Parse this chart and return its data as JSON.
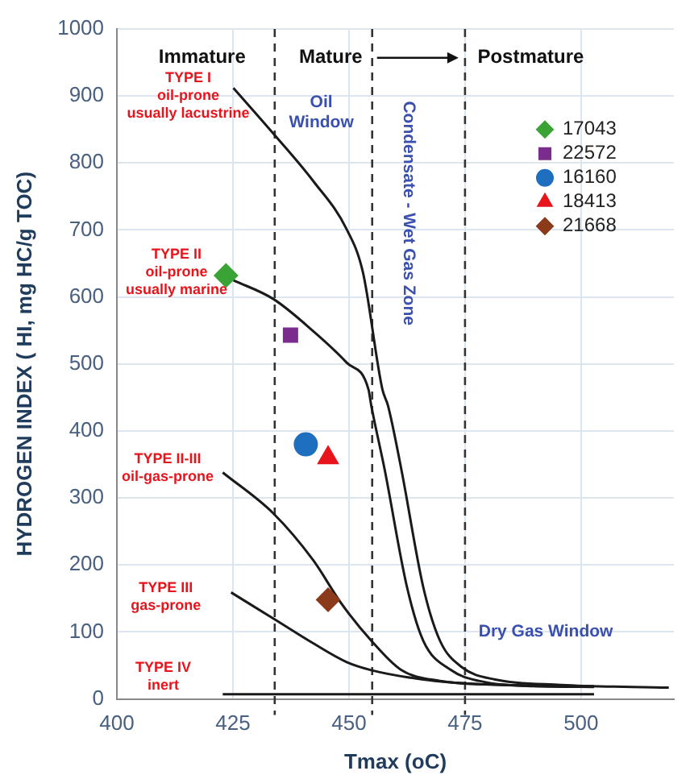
{
  "chart_data": {
    "type": "scatter",
    "xlabel": "Tmax (oC)",
    "ylabel": "HYDROGEN INDEX ( HI, mg HC/g TOC)",
    "xlim": [
      400,
      520
    ],
    "xticks": [
      400,
      425,
      450,
      475,
      500
    ],
    "ylim": [
      0,
      1000
    ],
    "yticks": [
      0,
      100,
      200,
      300,
      400,
      500,
      600,
      700,
      800,
      900,
      1000
    ],
    "grid": true,
    "legend": "top right",
    "series": [
      {
        "name": "17043",
        "color": "#3aa335",
        "marker": "diamond",
        "x": [
          423.5
        ],
        "values": [
          632
        ]
      },
      {
        "name": "22572",
        "color": "#7b2d8e",
        "marker": "square",
        "x": [
          437.4
        ],
        "values": [
          543
        ]
      },
      {
        "name": "16160",
        "color": "#1f6fc0",
        "marker": "circle",
        "x": [
          440.7
        ],
        "values": [
          380
        ]
      },
      {
        "name": "18413",
        "color": "#e8141c",
        "marker": "triangle",
        "x": [
          445.5
        ],
        "values": [
          360
        ]
      },
      {
        "name": "21668",
        "color": "#8b3a1a",
        "marker": "diamond",
        "x": [
          445.5
        ],
        "values": [
          148
        ]
      },
      {
        "type": "line",
        "color": "#1a1a1a",
        "marker": "none",
        "x": [
          425.1,
          433.7,
          442.3,
          449.5,
          453,
          457.2,
          458.4,
          461.3,
          466,
          469.6,
          474.4,
          481.5,
          495.7,
          518.9
        ],
        "values": [
          912,
          844,
          773,
          701,
          637,
          462,
          438,
          342,
          167,
          87,
          47,
          29,
          21,
          17
        ]
      },
      {
        "type": "line",
        "color": "#1a1a1a",
        "marker": "none",
        "x": [
          425.1,
          433.7,
          442.3,
          449.5,
          454.2,
          454.8,
          457.7,
          462.5,
          466,
          472,
          478,
          489.7,
          502.8
        ],
        "values": [
          625,
          597,
          549,
          502,
          462,
          438,
          342,
          167,
          87,
          43,
          27,
          19,
          18
        ]
      },
      {
        "type": "line",
        "color": "#1a1a1a",
        "marker": "none",
        "x": [
          422.8,
          433.7,
          442.3,
          448.3,
          454.8,
          461.3,
          469.6,
          483.9,
          502.8
        ],
        "values": [
          338,
          277,
          207,
          143,
          87,
          43,
          27,
          21,
          19
        ]
      },
      {
        "type": "line",
        "color": "#1a1a1a",
        "marker": "none",
        "x": [
          424.6,
          433.7,
          442.3,
          449.5,
          454.8,
          466,
          478,
          495.7
        ],
        "values": [
          159,
          120,
          83,
          55,
          43,
          29,
          22,
          19
        ]
      },
      {
        "type": "line",
        "color": "#1a1a1a",
        "marker": "none",
        "x": [
          422.8,
          502.8
        ],
        "values": [
          7,
          7
        ]
      }
    ],
    "ref_lines": [
      {
        "axis": "x",
        "value": 434,
        "color": "#333333",
        "line_style": "dashed"
      },
      {
        "axis": "x",
        "value": 455,
        "color": "#333333",
        "line_style": "dashed"
      },
      {
        "axis": "x",
        "value": 475,
        "color": "#333333",
        "line_style": "dashed"
      }
    ],
    "annotations": [
      "Immature",
      "Mature",
      "Postmature",
      "TYPE I\noil-prone\nusually lacustrine",
      "Oil\nWindow",
      "Condensate - Wet Gas Zone",
      "TYPE II\noil-prone\nusually marine",
      "TYPE II-III\noil-gas-prone",
      "TYPE III\ngas-prone",
      "TYPE IV\ninert",
      "Dry Gas Window"
    ]
  }
}
